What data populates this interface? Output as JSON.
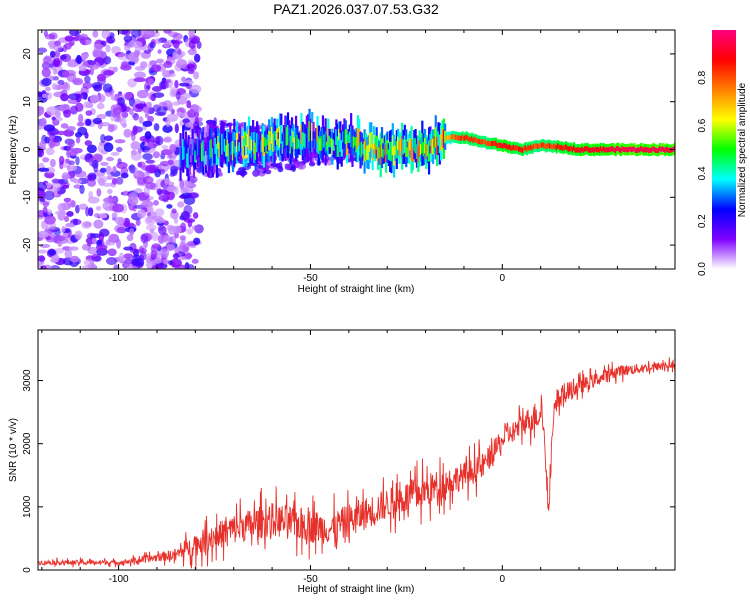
{
  "title": "PAZ1.2026.037.07.53.G32",
  "chart_data": [
    {
      "type": "heatmap",
      "name": "spectrogram",
      "xlabel": "Height of straight line (km)",
      "ylabel": "Frequency (Hz)",
      "xlim": [
        -121,
        45
      ],
      "ylim": [
        -25,
        25
      ],
      "xticks": [
        -100,
        -50,
        0
      ],
      "yticks": [
        20,
        10,
        0,
        -10,
        -20
      ],
      "colorbar": {
        "label": "Normalized spectral amplitude",
        "range": [
          0,
          1
        ],
        "ticks": [
          0.0,
          0.2,
          0.4,
          0.6,
          0.8
        ],
        "colors": [
          "#ffffff",
          "#8000ff",
          "#0000ff",
          "#00ffff",
          "#00ff00",
          "#ffff00",
          "#ff8000",
          "#ff0000",
          "#ff0080"
        ]
      },
      "ridge": [
        {
          "height": -83,
          "freq": -1,
          "amp": 0.3
        },
        {
          "height": -70,
          "freq": 0.5,
          "amp": 0.45
        },
        {
          "height": -60,
          "freq": 1.5,
          "amp": 0.45
        },
        {
          "height": -50,
          "freq": 2.5,
          "amp": 0.45
        },
        {
          "height": -40,
          "freq": 1.5,
          "amp": 0.5
        },
        {
          "height": -30,
          "freq": 0,
          "amp": 0.55
        },
        {
          "height": -20,
          "freq": 0,
          "amp": 0.55
        },
        {
          "height": -15,
          "freq": 2.5,
          "amp": 0.7
        },
        {
          "height": -10,
          "freq": 2.5,
          "amp": 0.85
        },
        {
          "height": -5,
          "freq": 1.5,
          "amp": 0.8
        },
        {
          "height": 0,
          "freq": 0.8,
          "amp": 0.9
        },
        {
          "height": 5,
          "freq": 0,
          "amp": 0.85
        },
        {
          "height": 10,
          "freq": 0.8,
          "amp": 0.8
        },
        {
          "height": 15,
          "freq": 0.5,
          "amp": 0.85
        },
        {
          "height": 20,
          "freq": 0,
          "amp": 0.9
        },
        {
          "height": 30,
          "freq": 0,
          "amp": 0.95
        },
        {
          "height": 45,
          "freq": 0,
          "amp": 0.95
        }
      ]
    },
    {
      "type": "line",
      "name": "snr",
      "xlabel": "Height of straight line (km)",
      "ylabel": "SNR (10 * v/v)",
      "xlim": [
        -121,
        45
      ],
      "ylim": [
        0,
        3800
      ],
      "xticks": [
        -100,
        -50,
        0
      ],
      "yticks": [
        0,
        1000,
        2000,
        3000
      ],
      "color": "#e8302a",
      "series_envelope": {
        "x": [
          -121,
          -100,
          -95,
          -85,
          -80,
          -70,
          -60,
          -50,
          -45,
          -40,
          -30,
          -20,
          -10,
          -5,
          0,
          5,
          10,
          12,
          15,
          20,
          30,
          45
        ],
        "mean": [
          120,
          120,
          150,
          250,
          400,
          650,
          800,
          700,
          650,
          780,
          1050,
          1250,
          1500,
          1650,
          2050,
          2300,
          2500,
          2200,
          2750,
          2900,
          3150,
          3250
        ],
        "spread": [
          60,
          60,
          80,
          150,
          300,
          400,
          450,
          450,
          400,
          450,
          400,
          450,
          350,
          350,
          250,
          300,
          400,
          500,
          300,
          200,
          150,
          100
        ]
      }
    }
  ]
}
